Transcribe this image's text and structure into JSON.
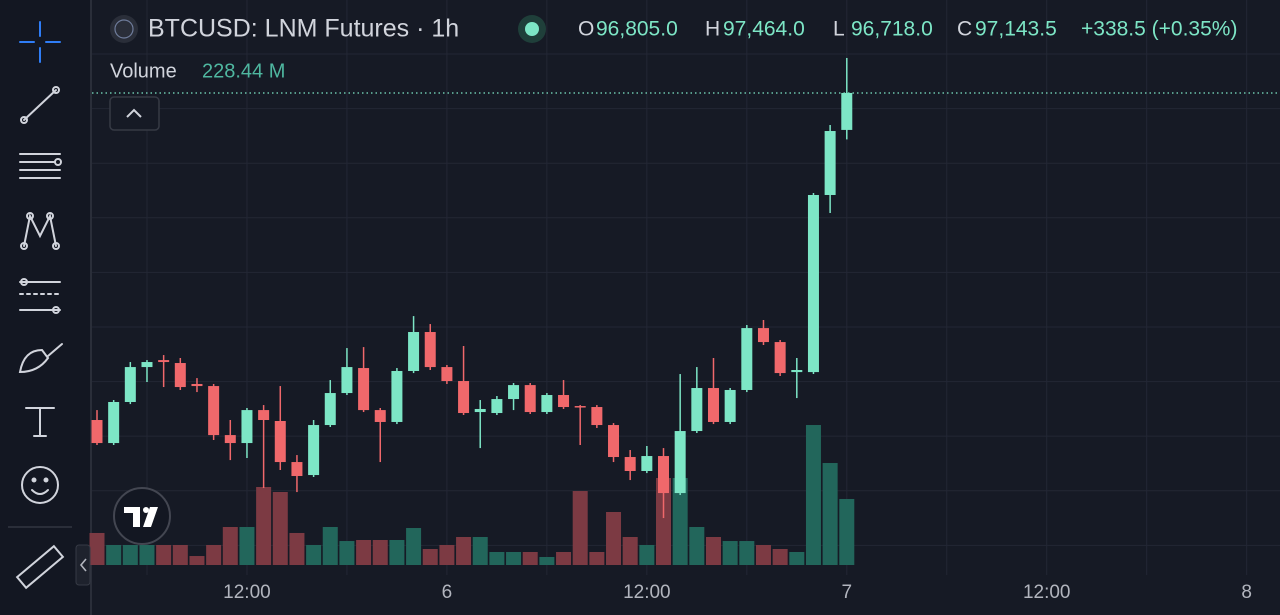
{
  "header": {
    "symbol": "BTCUSD: LNM Futures · 1h",
    "ohlc": [
      {
        "key": "O",
        "value": "96,805.0"
      },
      {
        "key": "H",
        "value": "97,464.0"
      },
      {
        "key": "L",
        "value": "96,718.0"
      },
      {
        "key": "C",
        "value": "97,143.5"
      }
    ],
    "change": "+338.5 (+0.35%)"
  },
  "volume_legend": {
    "label": "Volume",
    "value": "228.44 M"
  },
  "chart_data": {
    "type": "candlestick",
    "x": [
      0,
      1,
      2,
      3,
      4,
      5,
      6,
      7,
      8,
      9,
      10,
      11,
      12,
      13,
      14,
      15,
      16,
      17,
      18,
      19,
      20,
      21,
      22,
      23,
      24,
      25,
      26,
      27,
      28,
      29,
      30,
      31,
      32,
      33,
      34,
      35,
      36,
      37,
      38,
      39,
      40,
      41,
      42,
      43,
      44,
      45
    ],
    "open": [
      94148,
      93937,
      94313,
      94633,
      94697,
      94670,
      94478,
      94459,
      94010,
      93937,
      94239,
      94139,
      93763,
      93644,
      94102,
      94395,
      94624,
      94239,
      94130,
      94597,
      94954,
      94633,
      94505,
      94221,
      94212,
      94340,
      94468,
      94221,
      94377,
      94276,
      94267,
      94102,
      93809,
      93681,
      93818,
      93479,
      94047,
      94441,
      94130,
      94423,
      94990,
      94862,
      94587,
      94587,
      96209,
      96805
    ],
    "high": [
      94239,
      94331,
      94679,
      94697,
      94743,
      94716,
      94532,
      94478,
      94148,
      94258,
      94285,
      94459,
      93827,
      94148,
      94514,
      94807,
      94816,
      94258,
      94624,
      95100,
      95027,
      94652,
      94826,
      94331,
      94368,
      94487,
      94487,
      94395,
      94514,
      94285,
      94285,
      94120,
      93873,
      93910,
      93891,
      94569,
      94633,
      94716,
      94441,
      95018,
      95064,
      94881,
      94716,
      96227,
      96850,
      97464
    ],
    "low": [
      93919,
      93919,
      94294,
      94496,
      94450,
      94423,
      94404,
      93965,
      93781,
      93800,
      93525,
      93690,
      93488,
      93626,
      94084,
      94377,
      94221,
      93763,
      94111,
      94578,
      94606,
      94478,
      94194,
      93891,
      94194,
      94239,
      94203,
      94203,
      94249,
      93919,
      94075,
      93763,
      93598,
      93662,
      93250,
      93461,
      94029,
      94111,
      94111,
      94404,
      94835,
      94551,
      94349,
      94569,
      96044,
      96718
    ],
    "close": [
      93937,
      94313,
      94633,
      94679,
      94679,
      94450,
      94459,
      94010,
      93937,
      94239,
      94148,
      93763,
      93635,
      94102,
      94395,
      94633,
      94239,
      94130,
      94597,
      94954,
      94633,
      94505,
      94212,
      94249,
      94340,
      94468,
      94221,
      94377,
      94267,
      94267,
      94102,
      93809,
      93681,
      93818,
      93479,
      94047,
      94441,
      94130,
      94423,
      94990,
      94862,
      94578,
      94606,
      96209,
      96795,
      97143.5
    ],
    "volume": [
      110.8,
      69.2,
      69.2,
      69.2,
      69.2,
      69.2,
      31.1,
      69.2,
      131.5,
      131.5,
      269.9,
      252.6,
      110.8,
      69.2,
      131.5,
      83.0,
      86.5,
      86.5,
      86.5,
      128.0,
      55.4,
      69.2,
      96.9,
      96.9,
      45.0,
      45.0,
      45.0,
      27.7,
      45.0,
      256.0,
      45.0,
      183.4,
      96.9,
      69.2,
      301.0,
      301.0,
      131.5,
      96.9,
      83.0,
      83.0,
      69.2,
      55.4,
      45.0,
      484.4,
      352.9,
      228.44
    ],
    "up_color": "#7de6c6",
    "down_color": "#f0686b",
    "volume_up_color": "#22665b",
    "volume_down_color": "#7c3a43",
    "xlim": [
      -0.3,
      71
    ],
    "xticks": [
      {
        "value": 9,
        "label": "12:00"
      },
      {
        "value": 21,
        "label": "6"
      },
      {
        "value": 33,
        "label": "12:00"
      },
      {
        "value": 45,
        "label": "7"
      },
      {
        "value": 57,
        "label": "12:00"
      },
      {
        "value": 69,
        "label": "8"
      }
    ],
    "xgrid": [
      3,
      15,
      27,
      39,
      51,
      63
    ],
    "ylim": [
      92820,
      97995
    ],
    "yticks": [
      93000,
      93500,
      94000,
      94500,
      95000,
      95500,
      96000,
      96500,
      97000,
      97500
    ],
    "volume_ylim": [
      0,
      1955
    ],
    "grid": true
  }
}
